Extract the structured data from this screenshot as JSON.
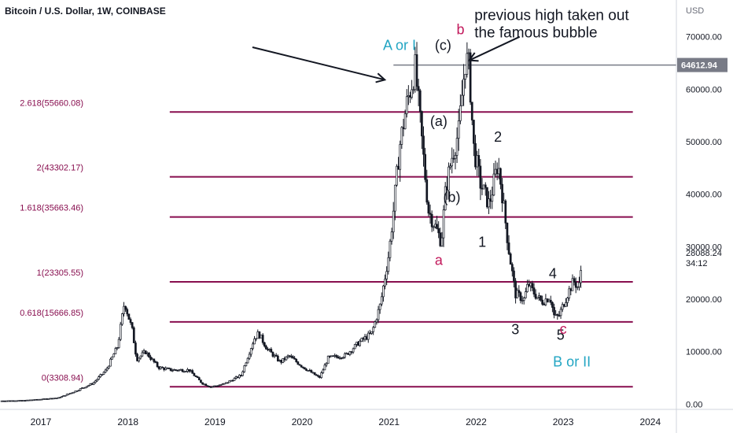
{
  "title": "Bitcoin / U.S. Dollar, 1W, COINBASE",
  "currency": "USD",
  "chart_data": {
    "type": "candlestick",
    "ylim": [
      -1000,
      77000
    ],
    "xlim": [
      2016.53,
      2024.3
    ],
    "y_ticks": [
      {
        "value": 0,
        "label": "0.00"
      },
      {
        "value": 10000,
        "label": "10000.00"
      },
      {
        "value": 20000,
        "label": "20000.00"
      },
      {
        "value": 30000,
        "label": "30000.00"
      },
      {
        "value": 40000,
        "label": "40000.00"
      },
      {
        "value": 50000,
        "label": "50000.00"
      },
      {
        "value": 60000,
        "label": "60000.00"
      },
      {
        "value": 70000,
        "label": "70000.00"
      }
    ],
    "x_ticks": [
      {
        "value": 2017,
        "label": "2017"
      },
      {
        "value": 2018,
        "label": "2018"
      },
      {
        "value": 2019,
        "label": "2019"
      },
      {
        "value": 2020,
        "label": "2020"
      },
      {
        "value": 2021,
        "label": "2021"
      },
      {
        "value": 2022,
        "label": "2022"
      },
      {
        "value": 2023,
        "label": "2023"
      },
      {
        "value": 2024,
        "label": "2024"
      }
    ],
    "price_path": [
      [
        2016.53,
        620
      ],
      [
        2016.8,
        700
      ],
      [
        2017.0,
        950
      ],
      [
        2017.2,
        1200
      ],
      [
        2017.4,
        2500
      ],
      [
        2017.6,
        4000
      ],
      [
        2017.75,
        6500
      ],
      [
        2017.88,
        11000
      ],
      [
        2017.96,
        19500
      ],
      [
        2018.05,
        14000
      ],
      [
        2018.1,
        8500
      ],
      [
        2018.2,
        10000
      ],
      [
        2018.35,
        7000
      ],
      [
        2018.5,
        6500
      ],
      [
        2018.7,
        6500
      ],
      [
        2018.85,
        4000
      ],
      [
        2018.95,
        3300
      ],
      [
        2019.1,
        3800
      ],
      [
        2019.3,
        5500
      ],
      [
        2019.45,
        12500
      ],
      [
        2019.5,
        13500
      ],
      [
        2019.6,
        10500
      ],
      [
        2019.75,
        8000
      ],
      [
        2019.85,
        9200
      ],
      [
        2020.0,
        7200
      ],
      [
        2020.2,
        5000
      ],
      [
        2020.3,
        8800
      ],
      [
        2020.5,
        9300
      ],
      [
        2020.65,
        11700
      ],
      [
        2020.8,
        13500
      ],
      [
        2020.9,
        19000
      ],
      [
        2021.0,
        29000
      ],
      [
        2021.05,
        37000
      ],
      [
        2021.12,
        49000
      ],
      [
        2021.2,
        57000
      ],
      [
        2021.3,
        64000
      ],
      [
        2021.35,
        55000
      ],
      [
        2021.45,
        37000
      ],
      [
        2021.55,
        33000
      ],
      [
        2021.6,
        31000
      ],
      [
        2021.65,
        41000
      ],
      [
        2021.72,
        47000
      ],
      [
        2021.8,
        52000
      ],
      [
        2021.85,
        61000
      ],
      [
        2021.88,
        66000
      ],
      [
        2021.92,
        64000
      ],
      [
        2021.97,
        49000
      ],
      [
        2022.05,
        42000
      ],
      [
        2022.15,
        38000
      ],
      [
        2022.25,
        46000
      ],
      [
        2022.3,
        40000
      ],
      [
        2022.37,
        30000
      ],
      [
        2022.45,
        21000
      ],
      [
        2022.55,
        20000
      ],
      [
        2022.6,
        23000
      ],
      [
        2022.65,
        21500
      ],
      [
        2022.75,
        19500
      ],
      [
        2022.85,
        20500
      ],
      [
        2022.9,
        16500
      ],
      [
        2022.95,
        16800
      ],
      [
        2023.05,
        21000
      ],
      [
        2023.12,
        23500
      ],
      [
        2023.18,
        22000
      ],
      [
        2023.22,
        28088
      ]
    ],
    "fib_levels": [
      {
        "label": "2.618(55660.08)",
        "value": 55660.08
      },
      {
        "label": "2(43302.17)",
        "value": 43302.17
      },
      {
        "label": "1.618(35663.46)",
        "value": 35663.46
      },
      {
        "label": "1(23305.55)",
        "value": 23305.55
      },
      {
        "label": "0.618(15666.85)",
        "value": 15666.85
      },
      {
        "label": "0(3308.94)",
        "value": 3308.94
      }
    ],
    "fib_start_x": 2018.48,
    "fib_end_x": 2023.8,
    "fib_color": "#880e4f",
    "previous_high": {
      "value": 64612.94,
      "label": "64612.94",
      "start_x": 2021.05,
      "color": "#787b86"
    },
    "last_price": {
      "value": 28088.24,
      "label": "28088.24",
      "countdown": "34:12"
    },
    "annotations": [
      {
        "text": "A or I",
        "x": 2021.12,
        "y": 67500,
        "color": "#22a5c3"
      },
      {
        "text": "(c)",
        "x": 2021.62,
        "y": 67500,
        "color": "#131722"
      },
      {
        "text": "b",
        "x": 2021.82,
        "y": 70500,
        "color": "#c2185b"
      },
      {
        "text": "(a)",
        "x": 2021.57,
        "y": 53000,
        "color": "#131722"
      },
      {
        "text": "2",
        "x": 2022.25,
        "y": 50000,
        "color": "#131722"
      },
      {
        "text": "(b)",
        "x": 2021.72,
        "y": 38500,
        "color": "#131722"
      },
      {
        "text": "1",
        "x": 2022.07,
        "y": 30000,
        "color": "#131722"
      },
      {
        "text": "a",
        "x": 2021.57,
        "y": 26500,
        "color": "#c2185b"
      },
      {
        "text": "4",
        "x": 2022.88,
        "y": 24000,
        "color": "#131722"
      },
      {
        "text": "3",
        "x": 2022.45,
        "y": 13300,
        "color": "#131722"
      },
      {
        "text": "5",
        "x": 2022.97,
        "y": 12300,
        "color": "#131722"
      },
      {
        "text": "c",
        "x": 2023.0,
        "y": 13400,
        "color": "#c2185b"
      },
      {
        "text": "B or II",
        "x": 2023.1,
        "y": 7200,
        "color": "#22a5c3"
      }
    ],
    "note": {
      "lines": [
        "previous high taken out",
        "the famous bubble"
      ],
      "x": 2021.98,
      "y": 73200
    },
    "arrows": [
      {
        "from": [
          2019.43,
          68000
        ],
        "to": [
          2020.95,
          61800
        ]
      },
      {
        "from": [
          2022.5,
          70000
        ],
        "to": [
          2021.92,
          65500
        ]
      }
    ]
  }
}
